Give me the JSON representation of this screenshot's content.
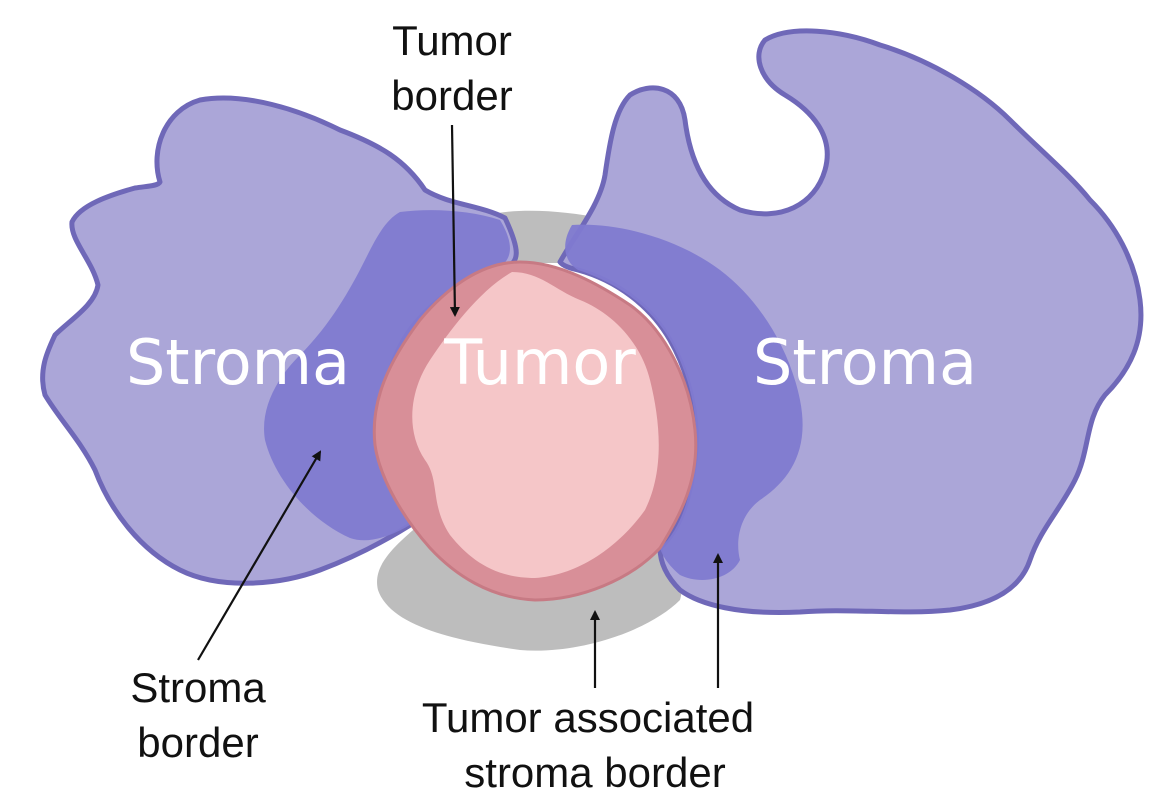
{
  "regions": {
    "stroma_left": "Stroma",
    "tumor": "Tumor",
    "stroma_right": "Stroma"
  },
  "annotations": {
    "tumor_border": {
      "line1": "Tumor",
      "line2": "border"
    },
    "stroma_border": {
      "line1": "Stroma",
      "line2": "border"
    },
    "tumor_associated_stroma_border": {
      "line1": "Tumor associated",
      "line2": "stroma border"
    }
  },
  "colors": {
    "stroma_fill": "#aba6d8",
    "stroma_outline": "#6f68b8",
    "stroma_border_zone": "#7f7ad0",
    "tumor_fill": "#f5c6c8",
    "tumor_border_zone": "#d88f98",
    "tumor_associated_zone": "#bdbdbd",
    "label_text": "#ffffff",
    "annotation_text": "#111111"
  }
}
